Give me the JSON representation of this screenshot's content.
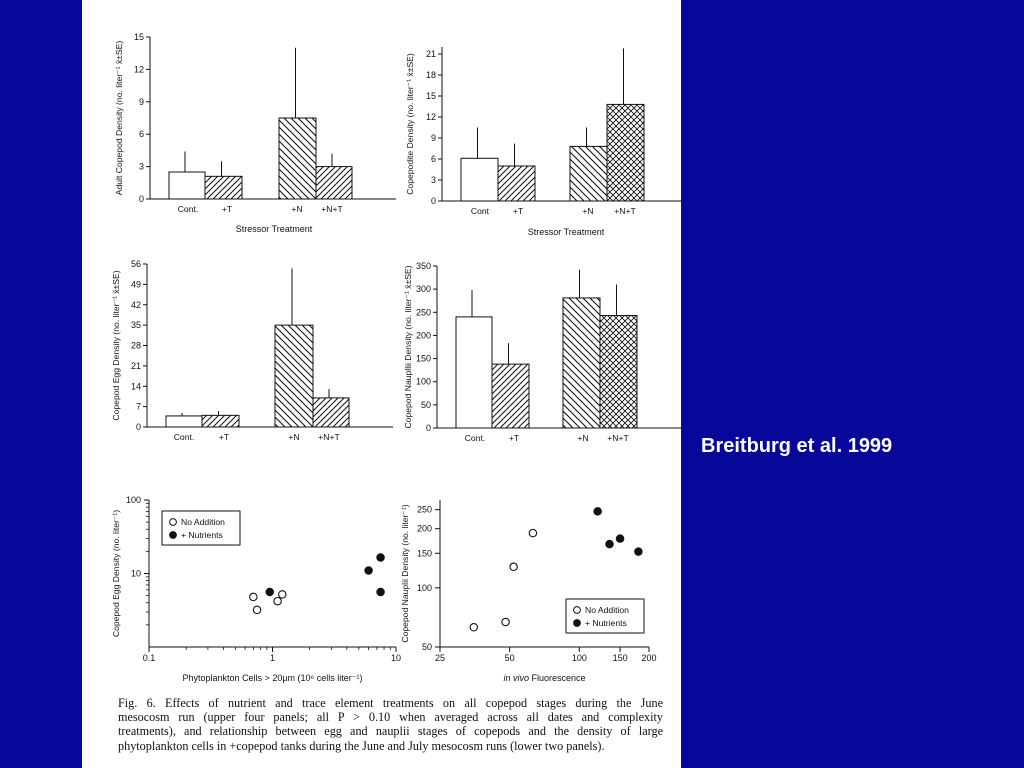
{
  "slide": {
    "citation": "Breitburg et al. 1999"
  },
  "caption": {
    "lines": [
      "Fig. 6.   Effects of nutrient and trace element treatments on all copepod stages during the June",
      "mesocosm run (upper four panels; all P > 0.10 when averaged across all dates and complexity",
      "treatments), and relationship between egg and nauplii stages of copepods and the density of large",
      "phytoplankton cells in +copepod tanks during the June and July mesocosm runs (lower two panels)."
    ]
  },
  "chart_data": [
    {
      "type": "bar",
      "ylabel": "Adult Copepod Density (no. liter⁻¹ x̄±SE)",
      "xlabel": "Stressor Treatment",
      "categories": [
        "Cont.",
        "+T",
        "+N",
        "+N+T"
      ],
      "values": [
        2.5,
        2.1,
        7.5,
        3.0
      ],
      "error_upper": [
        4.4,
        3.5,
        14.0,
        4.2
      ],
      "patterns": [
        "none",
        "diag",
        "diag-rev",
        "diag"
      ],
      "yticks": [
        "0",
        "3",
        "6",
        "9",
        "12",
        "15"
      ],
      "ylim": [
        0,
        15
      ],
      "grid": false
    },
    {
      "type": "bar",
      "ylabel": "Copepodite Density (no. liter⁻¹ x̄±SE)",
      "xlabel": "Stressor Treatment",
      "categories": [
        "Cont",
        "+T",
        "+N",
        "+N+T"
      ],
      "values": [
        6.1,
        5.0,
        7.8,
        13.8
      ],
      "error_upper": [
        10.5,
        8.2,
        10.5,
        21.8
      ],
      "patterns": [
        "none",
        "diag",
        "diag-rev",
        "cross"
      ],
      "yticks": [
        "0",
        "3",
        "6",
        "9",
        "12",
        "15",
        "18",
        "21"
      ],
      "ylim": [
        0,
        22
      ],
      "grid": false
    },
    {
      "type": "bar",
      "ylabel": "Copepod Egg Density (no. liter⁻¹ x̄±SE)",
      "xlabel": "",
      "categories": [
        "Cont.",
        "+T",
        "+N",
        "+N+T"
      ],
      "values": [
        3.8,
        4.0,
        35.0,
        10.0
      ],
      "error_upper": [
        4.8,
        5.5,
        54.5,
        13.0
      ],
      "patterns": [
        "none",
        "diag",
        "diag-rev",
        "diag"
      ],
      "yticks": [
        "0",
        "7",
        "14",
        "21",
        "28",
        "35",
        "42",
        "49",
        "56"
      ],
      "ylim": [
        0,
        56
      ],
      "grid": false
    },
    {
      "type": "bar",
      "ylabel": "Copepod Naupllii Density (no. liter⁻¹ x̄±SE)",
      "xlabel": "",
      "categories": [
        "Cont.",
        "+T",
        "+N",
        "+N+T"
      ],
      "values": [
        240,
        138,
        281,
        243
      ],
      "error_upper": [
        298,
        183,
        342,
        310
      ],
      "patterns": [
        "none",
        "diag",
        "diag-rev",
        "cross"
      ],
      "yticks": [
        "0",
        "50",
        "100",
        "150",
        "200",
        "250",
        "300",
        "350"
      ],
      "ylim": [
        0,
        350
      ],
      "grid": false
    },
    {
      "type": "scatter",
      "xscale": "log",
      "yscale": "log",
      "xlabel": "Phytoplankton Cells > 20µm (10⁶ cells liter⁻¹)",
      "ylabel": "Copepod Egg Density (no. liter⁻¹)",
      "xlim": [
        0.1,
        10
      ],
      "ylim": [
        1,
        100
      ],
      "xticks": [
        0.1,
        1,
        10
      ],
      "yticks": [
        10,
        100
      ],
      "legend_position": "top-left",
      "series": [
        {
          "name": "No Addition",
          "marker": "open-circle",
          "points": [
            [
              0.7,
              4.8
            ],
            [
              0.75,
              3.2
            ],
            [
              1.1,
              4.2
            ],
            [
              1.2,
              5.2
            ]
          ]
        },
        {
          "name": "+ Nutrients",
          "marker": "filled-circle",
          "points": [
            [
              0.95,
              5.6
            ],
            [
              6.0,
              11.0
            ],
            [
              7.5,
              16.5
            ],
            [
              7.5,
              5.6
            ]
          ]
        }
      ],
      "grid": false
    },
    {
      "type": "scatter",
      "xscale": "log",
      "yscale": "log",
      "xlabel": "in vivo Fluorescence",
      "ylabel": "Copepod Nauplii Density (no. liter⁻¹)",
      "xlim": [
        25,
        200
      ],
      "ylim": [
        50,
        280
      ],
      "xticks": [
        25,
        50,
        100,
        150,
        200
      ],
      "yticks": [
        50,
        100,
        150,
        200,
        250
      ],
      "legend_position": "bottom-right",
      "series": [
        {
          "name": "No Addition",
          "marker": "open-circle",
          "points": [
            [
              35,
              63
            ],
            [
              48,
              67
            ],
            [
              52,
              128
            ],
            [
              63,
              190
            ]
          ]
        },
        {
          "name": "+ Nutrients",
          "marker": "filled-circle",
          "points": [
            [
              120,
              245
            ],
            [
              135,
              167
            ],
            [
              150,
              178
            ],
            [
              180,
              153
            ]
          ]
        }
      ],
      "grid": false
    }
  ]
}
